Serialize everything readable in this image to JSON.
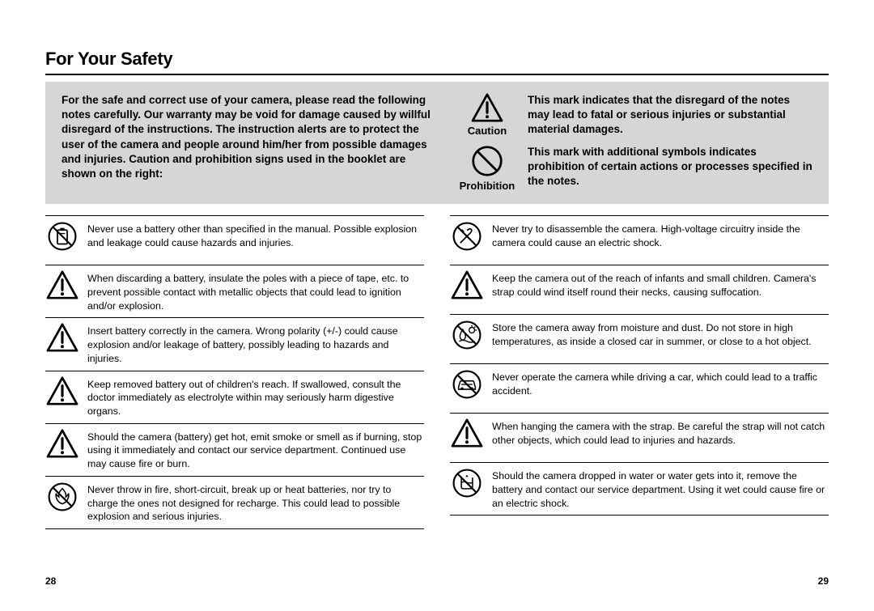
{
  "title": "For Your Safety",
  "intro": "For the safe and correct use of your camera, please read the following notes carefully. Our warranty may be void for damage caused by willful disregard of the instructions. The instruction alerts are to protect the user of the camera and people around him/her from possible damages and injuries. Caution and prohibition signs used in the booklet are shown on the right:",
  "legend": {
    "caution_label": "Caution",
    "caution_text": "This mark indicates that the disregard of the notes may lead to fatal or serious injuries or substantial material damages.",
    "prohibition_label": "Prohibition",
    "prohibition_text": "This mark with additional symbols indicates prohibition of certain actions or processes specified in the notes."
  },
  "left_items": [
    {
      "icon": "battery-prohibit",
      "text": "Never use a battery other than specified in the manual. Possible explosion and leakage could cause hazards and injuries."
    },
    {
      "icon": "caution",
      "text": "When discarding a battery, insulate the poles with a piece of tape, etc. to prevent possible contact with metallic objects that could lead to ignition and/or explosion."
    },
    {
      "icon": "caution",
      "text": "Insert battery correctly in the camera. Wrong polarity (+/-) could cause explosion and/or leakage of battery, possibly leading to hazards and injuries."
    },
    {
      "icon": "caution",
      "text": "Keep removed battery out of children's reach. If swallowed, consult the doctor immediately as electrolyte within may seriously harm digestive organs."
    },
    {
      "icon": "caution",
      "text": "Should the camera (battery) get hot, emit smoke or smell as if burning, stop using it immediately and contact our service department. Continued use may cause fire or burn."
    },
    {
      "icon": "fire-prohibit",
      "text": "Never throw in fire, short-circuit, break up or heat batteries, nor try to charge the ones not designed for recharge. This could lead to possible explosion and serious injuries."
    }
  ],
  "right_items": [
    {
      "icon": "disassemble-prohibit",
      "text": "Never try to disassemble the camera. High-voltage circuitry inside the camera could cause an electric shock."
    },
    {
      "icon": "caution",
      "text": "Keep the camera out of the reach of infants and small children. Camera's strap could wind itself round their necks, causing suffocation."
    },
    {
      "icon": "moisture-prohibit",
      "text": "Store the camera away from moisture and dust. Do not store in high temperatures, as inside a closed car in summer, or close to a hot object."
    },
    {
      "icon": "driving-prohibit",
      "text": "Never operate the camera while driving a car, which could lead to a traffic accident."
    },
    {
      "icon": "caution",
      "text": "When hanging the camera with the strap. Be careful the strap will not catch other objects, which could lead to injuries and hazards."
    },
    {
      "icon": "water-prohibit",
      "text": "Should the camera dropped in water or water gets into it, remove the battery and contact our service department. Using it wet could cause fire or an electric shock."
    }
  ],
  "page_left": "28",
  "page_right": "29"
}
